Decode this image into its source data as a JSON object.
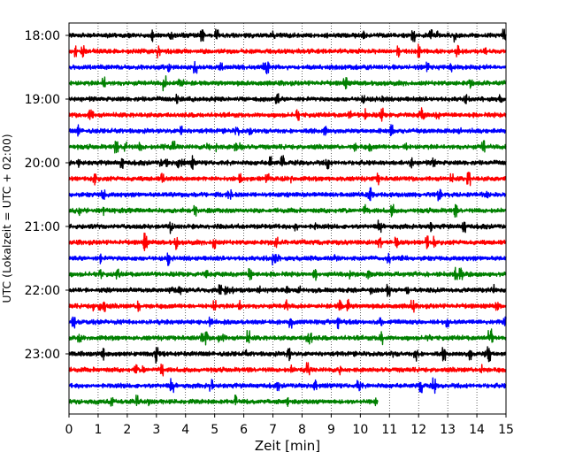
{
  "chart_data": {
    "type": "line",
    "subtype": "helicorder-seismogram",
    "xlabel": "Zeit  [min]",
    "ylabel": "UTC (Lokalzeit = UTC + 02:00)",
    "xlim": [
      0,
      15
    ],
    "x_ticks": [
      "0",
      "1",
      "2",
      "3",
      "4",
      "5",
      "6",
      "7",
      "8",
      "9",
      "10",
      "11",
      "12",
      "13",
      "14",
      "15"
    ],
    "y_tick_labels": [
      "18:00",
      "19:00",
      "20:00",
      "21:00",
      "22:00",
      "23:00"
    ],
    "vertical_grid": "dotted",
    "colors": [
      "#000000",
      "#ff0000",
      "#0000ff",
      "#008000"
    ],
    "traces": [
      {
        "start": "18:00",
        "color": "#000000",
        "end_min": 15
      },
      {
        "start": "18:15",
        "color": "#ff0000",
        "end_min": 15
      },
      {
        "start": "18:30",
        "color": "#0000ff",
        "end_min": 15
      },
      {
        "start": "18:45",
        "color": "#008000",
        "end_min": 15
      },
      {
        "start": "19:00",
        "color": "#000000",
        "end_min": 15
      },
      {
        "start": "19:15",
        "color": "#ff0000",
        "end_min": 15
      },
      {
        "start": "19:30",
        "color": "#0000ff",
        "end_min": 15
      },
      {
        "start": "19:45",
        "color": "#008000",
        "end_min": 15
      },
      {
        "start": "20:00",
        "color": "#000000",
        "end_min": 15
      },
      {
        "start": "20:15",
        "color": "#ff0000",
        "end_min": 15
      },
      {
        "start": "20:30",
        "color": "#0000ff",
        "end_min": 15
      },
      {
        "start": "20:45",
        "color": "#008000",
        "end_min": 15
      },
      {
        "start": "21:00",
        "color": "#000000",
        "end_min": 15
      },
      {
        "start": "21:15",
        "color": "#ff0000",
        "end_min": 15
      },
      {
        "start": "21:30",
        "color": "#0000ff",
        "end_min": 15
      },
      {
        "start": "21:45",
        "color": "#008000",
        "end_min": 15
      },
      {
        "start": "22:00",
        "color": "#000000",
        "end_min": 15
      },
      {
        "start": "22:15",
        "color": "#ff0000",
        "end_min": 15
      },
      {
        "start": "22:30",
        "color": "#0000ff",
        "end_min": 15
      },
      {
        "start": "22:45",
        "color": "#008000",
        "end_min": 15
      },
      {
        "start": "23:00",
        "color": "#000000",
        "end_min": 15
      },
      {
        "start": "23:15",
        "color": "#ff0000",
        "end_min": 15
      },
      {
        "start": "23:30",
        "color": "#0000ff",
        "end_min": 15
      },
      {
        "start": "23:45",
        "color": "#008000",
        "end_min": 10.6
      }
    ]
  }
}
